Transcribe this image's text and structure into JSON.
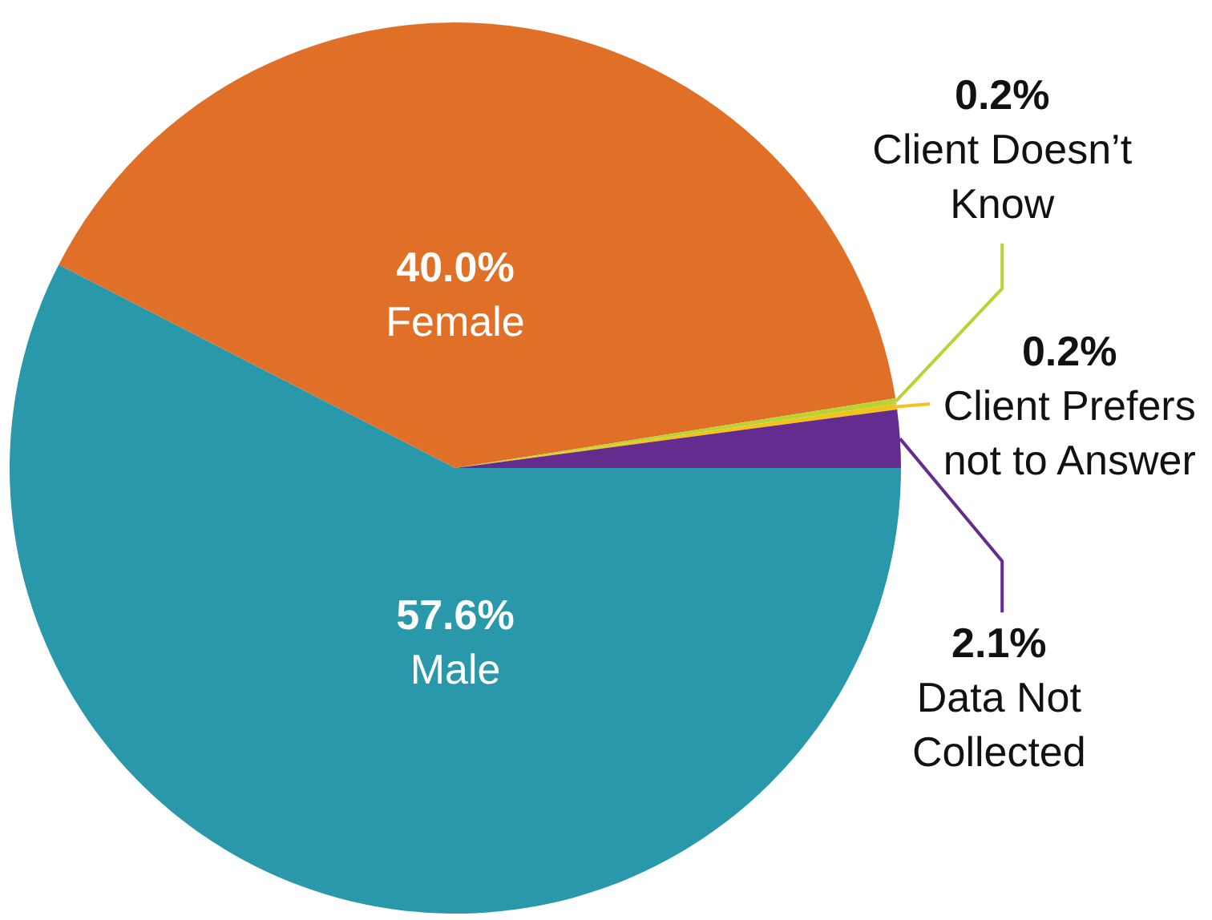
{
  "chart_data": {
    "type": "pie",
    "categories": [
      "Male",
      "Female",
      "Client Doesn’t Know",
      "Client Prefers not to Answer",
      "Data Not Collected"
    ],
    "values": [
      57.6,
      40.0,
      0.2,
      0.2,
      2.1
    ],
    "value_labels": [
      "57.6%",
      "40.0%",
      "0.2%",
      "0.2%",
      "2.1%"
    ],
    "colors": [
      "#2898aa",
      "#e06f28",
      "#b7d433",
      "#f5c21b",
      "#652c90"
    ]
  }
}
